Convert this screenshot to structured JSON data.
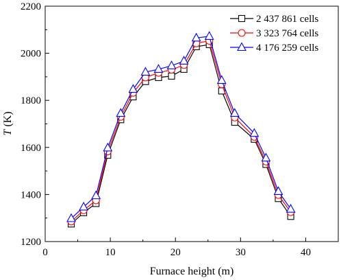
{
  "chart_data": {
    "type": "line",
    "xlabel": "Furnace height (m)",
    "ylabel_var": "T",
    "ylabel_unit": " (K)",
    "xlim": [
      0,
      45
    ],
    "ylim": [
      1200,
      2200
    ],
    "xticks": [
      0,
      10,
      20,
      30,
      40
    ],
    "yticks": [
      1200,
      1400,
      1600,
      1800,
      2000,
      2200
    ],
    "x": [
      4,
      5.9,
      7.8,
      9.6,
      11.6,
      13.5,
      15.4,
      17.4,
      19.4,
      21.3,
      23.2,
      25.2,
      27.1,
      29.1,
      32.1,
      33.9,
      35.8,
      37.7
    ],
    "legend_position": "top-right",
    "grid": false,
    "series": [
      {
        "name": "2 437 861 cells",
        "marker": "square",
        "color": "#000000",
        "values": [
          1275,
          1323,
          1362,
          1567,
          1718,
          1815,
          1880,
          1897,
          1903,
          1932,
          2028,
          2037,
          1840,
          1707,
          1635,
          1528,
          1383,
          1307
        ]
      },
      {
        "name": "3 323 764 cells",
        "marker": "circle",
        "color": "#ff0000",
        "values": [
          1285,
          1333,
          1375,
          1583,
          1730,
          1832,
          1897,
          1917,
          1930,
          1950,
          2042,
          2053,
          1868,
          1727,
          1645,
          1540,
          1398,
          1325
        ]
      },
      {
        "name": "4 176 259 cells",
        "marker": "triangle",
        "color": "#0000ff",
        "values": [
          1298,
          1347,
          1395,
          1598,
          1745,
          1847,
          1920,
          1932,
          1947,
          1967,
          2065,
          2072,
          1885,
          1745,
          1660,
          1555,
          1413,
          1338
        ]
      }
    ]
  }
}
